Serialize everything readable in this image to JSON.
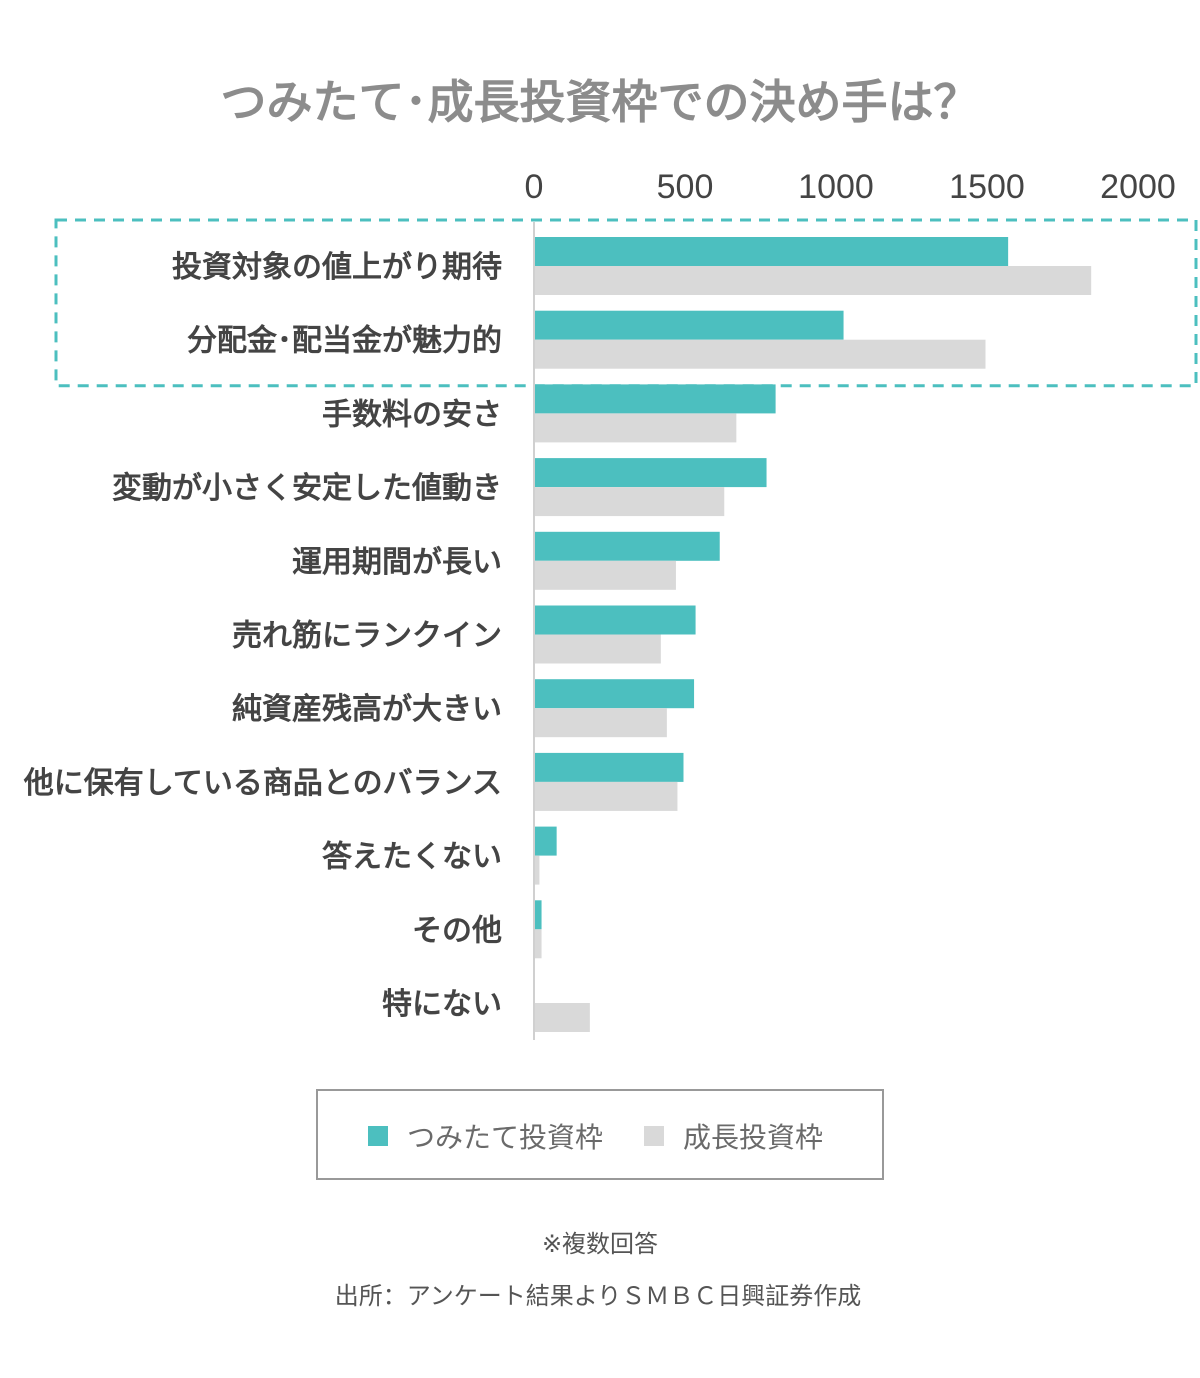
{
  "chart_data": {
    "type": "bar",
    "orientation": "horizontal",
    "title": "つみたて･成長投資枠での決め手は？",
    "categories": [
      "投資対象の値上がり期待",
      "分配金･配当金が魅力的",
      "手数料の安さ",
      "変動が小さく安定した値動き",
      "運用期間が長い",
      "売れ筋にランクイン",
      "純資産残高が大きい",
      "他に保有している商品とのバランス",
      "答えたくない",
      "その他",
      "特にない"
    ],
    "series": [
      {
        "name": "つみたて投資枠",
        "color": "#4cbfbf",
        "values": [
          1570,
          1025,
          800,
          770,
          615,
          535,
          530,
          495,
          75,
          25,
          0
        ]
      },
      {
        "name": "成長投資枠",
        "color": "#d9d9d9",
        "values": [
          1845,
          1495,
          670,
          630,
          470,
          420,
          440,
          475,
          18,
          25,
          185
        ]
      }
    ],
    "xticks": [
      "0",
      "500",
      "1000",
      "1500",
      "2000"
    ],
    "xlim": [
      0,
      2000
    ],
    "axis_position": "top",
    "grid": false,
    "legend": "bottom",
    "highlight": {
      "categories": [
        "投資対象の値上がり期待",
        "分配金･配当金が魅力的"
      ],
      "style": "dashed",
      "color": "#4cbfbf"
    }
  },
  "notes": {
    "multiple_answers": "※複数回答",
    "source": "出所：アンケート結果よりＳＭＢＣ日興証券作成"
  }
}
